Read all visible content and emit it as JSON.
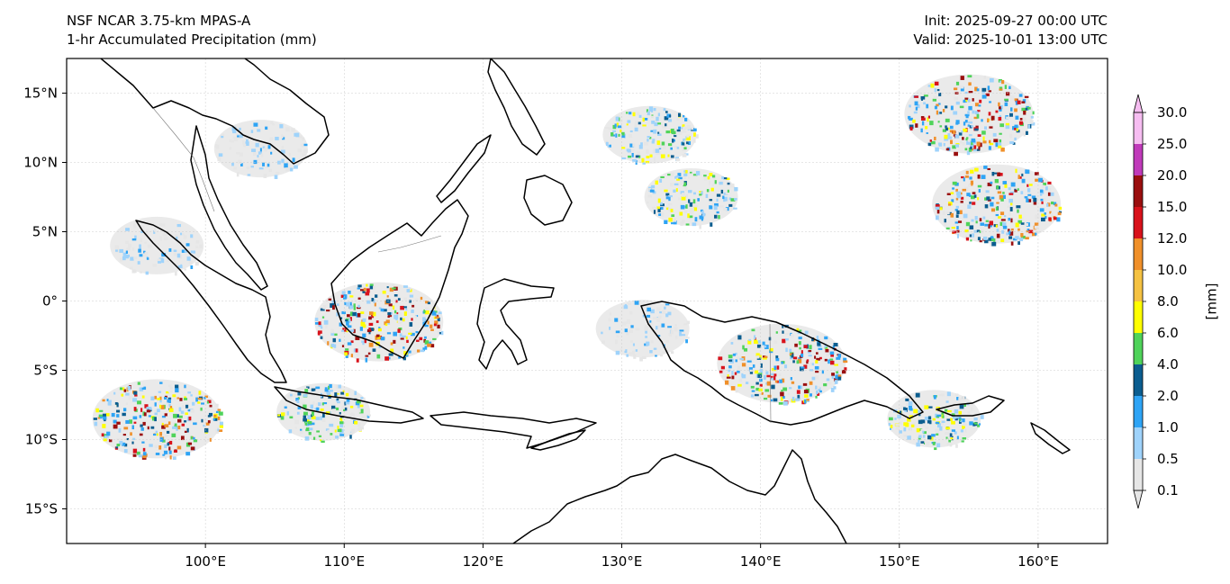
{
  "header": {
    "model": "NSF NCAR 3.75-km MPAS-A",
    "field": "1-hr Accumulated Precipitation (mm)",
    "init": "Init: 2025-09-27 00:00 UTC",
    "valid": "Valid: 2025-10-01 13:00 UTC"
  },
  "axes": {
    "lat_labels": [
      "15°N",
      "10°N",
      "5°N",
      "0°",
      "5°S",
      "10°S",
      "15°S"
    ],
    "lon_labels": [
      "100°E",
      "110°E",
      "120°E",
      "130°E",
      "140°E",
      "150°E",
      "160°E"
    ],
    "lat_values": [
      15,
      10,
      5,
      0,
      -5,
      -10,
      -15
    ],
    "lon_values": [
      100,
      110,
      120,
      130,
      140,
      150,
      160
    ],
    "lon_range": [
      90,
      165
    ],
    "lat_range": [
      -17.5,
      17.5
    ],
    "grid": true
  },
  "colorbar": {
    "unit_label": "[mm]",
    "levels": [
      "0.1",
      "0.5",
      "1.0",
      "2.0",
      "4.0",
      "6.0",
      "8.0",
      "10.0",
      "12.0",
      "15.0",
      "20.0",
      "25.0",
      "30.0"
    ],
    "colors": [
      "#e6e6e6",
      "#9fd3fb",
      "#2ea4f5",
      "#0b5d8f",
      "#4fd35a",
      "#ffff00",
      "#f5c242",
      "#f0902a",
      "#d8121b",
      "#9a0f0f",
      "#c03aba",
      "#f6bdf1"
    ],
    "extend": "both"
  },
  "precip_regions": [
    {
      "lon": 96.5,
      "lat": -8.5,
      "intensity": "heavy"
    },
    {
      "lon": 112.5,
      "lat": -1.5,
      "intensity": "heavy"
    },
    {
      "lon": 141.5,
      "lat": -4.5,
      "intensity": "heavy"
    },
    {
      "lon": 135.0,
      "lat": 7.5,
      "intensity": "moderate"
    },
    {
      "lon": 132.0,
      "lat": 12.0,
      "intensity": "moderate"
    },
    {
      "lon": 155.0,
      "lat": 13.5,
      "intensity": "heavy"
    },
    {
      "lon": 157.0,
      "lat": 7.0,
      "intensity": "heavy"
    },
    {
      "lon": 152.5,
      "lat": -8.5,
      "intensity": "moderate"
    },
    {
      "lon": 108.5,
      "lat": -8.0,
      "intensity": "moderate"
    },
    {
      "lon": 96.5,
      "lat": 4.0,
      "intensity": "light"
    },
    {
      "lon": 104.0,
      "lat": 11.0,
      "intensity": "light"
    },
    {
      "lon": 131.5,
      "lat": -2.0,
      "intensity": "light"
    }
  ]
}
